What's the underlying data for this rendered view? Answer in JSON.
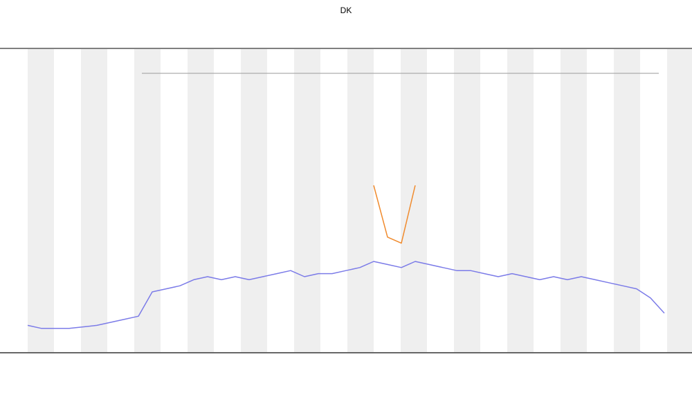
{
  "chart_data": {
    "type": "line",
    "title": "DK",
    "x": [
      0,
      1,
      2,
      3,
      4,
      5,
      6,
      7,
      8,
      9,
      10,
      11,
      12,
      13,
      14,
      15,
      16,
      17,
      18,
      19,
      20,
      21,
      22,
      23,
      24,
      25,
      26,
      27,
      28,
      29,
      30,
      31,
      32,
      33,
      34,
      35,
      36,
      37,
      38,
      39,
      40,
      41,
      42,
      43,
      44,
      45,
      46
    ],
    "xlim": [
      0,
      46
    ],
    "ylim": [
      0,
      100
    ],
    "series": [
      {
        "color": "#7b7be8",
        "values": [
          9,
          8,
          8,
          8,
          8.5,
          9,
          10,
          11,
          12,
          20,
          21,
          22,
          24,
          25,
          24,
          25,
          24,
          25,
          26,
          27,
          25,
          26,
          26,
          27,
          28,
          30,
          29,
          28,
          30,
          29,
          28,
          27,
          27,
          26,
          25,
          26,
          25,
          24,
          25,
          24,
          25,
          24,
          23,
          22,
          21,
          18,
          13
        ]
      },
      {
        "color": "#f08a2c",
        "values": [
          null,
          null,
          null,
          null,
          null,
          null,
          null,
          null,
          null,
          null,
          null,
          null,
          null,
          null,
          null,
          null,
          null,
          null,
          null,
          null,
          null,
          null,
          null,
          null,
          null,
          55,
          38,
          36,
          55,
          null,
          null,
          null,
          null,
          null,
          null,
          null,
          null,
          null,
          null,
          null,
          null,
          null,
          null,
          null,
          null,
          null,
          null
        ]
      }
    ]
  }
}
